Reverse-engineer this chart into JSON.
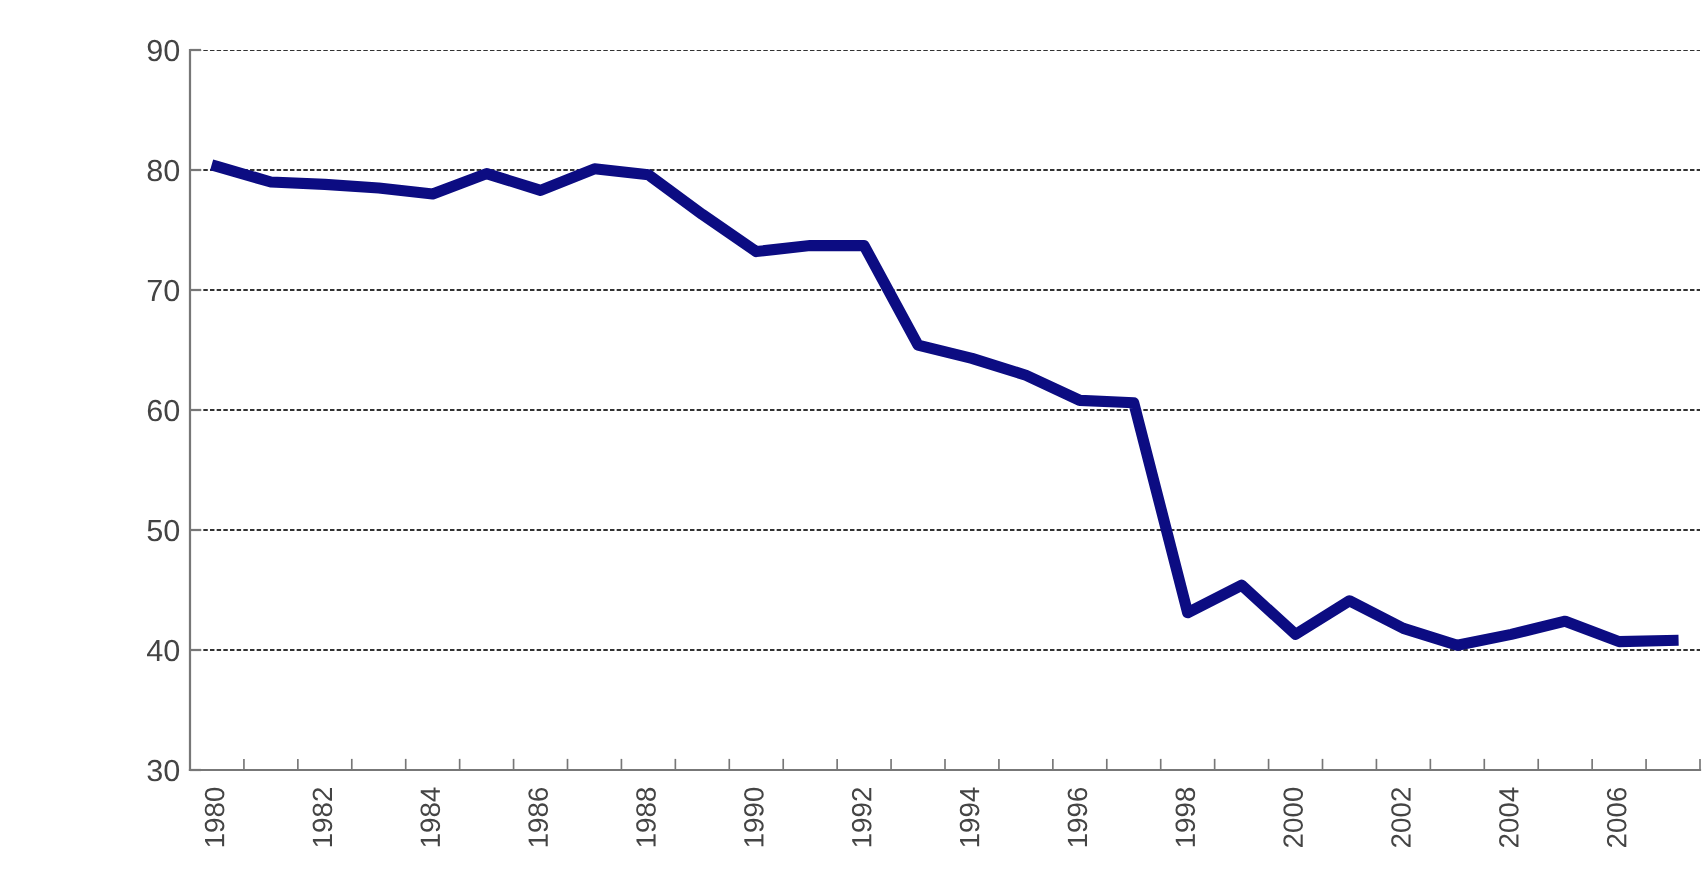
{
  "chart_data": {
    "type": "line",
    "categories": [
      "1980",
      null,
      "1982",
      null,
      "1984",
      null,
      "1986",
      null,
      "1988",
      null,
      "1990",
      null,
      "1992",
      null,
      "1994",
      null,
      "1996",
      null,
      "1998",
      null,
      "2000",
      null,
      "2002",
      null,
      "2004",
      null,
      "2006",
      null
    ],
    "series": [
      {
        "color": "#0c0c82",
        "values": [
          80.3,
          79.0,
          78.8,
          78.5,
          78.0,
          79.7,
          78.3,
          80.1,
          79.6,
          76.3,
          73.2,
          73.7,
          73.7,
          65.4,
          64.3,
          62.9,
          60.8,
          60.6,
          43.1,
          45.4,
          41.3,
          44.1,
          41.8,
          40.4,
          41.3,
          42.4,
          40.7,
          40.8
        ]
      }
    ],
    "ylim": [
      30,
      90
    ],
    "yticks": [
      30,
      40,
      50,
      60,
      70,
      80,
      90
    ],
    "grid": "y",
    "line_style": "solid",
    "marker": "none"
  }
}
